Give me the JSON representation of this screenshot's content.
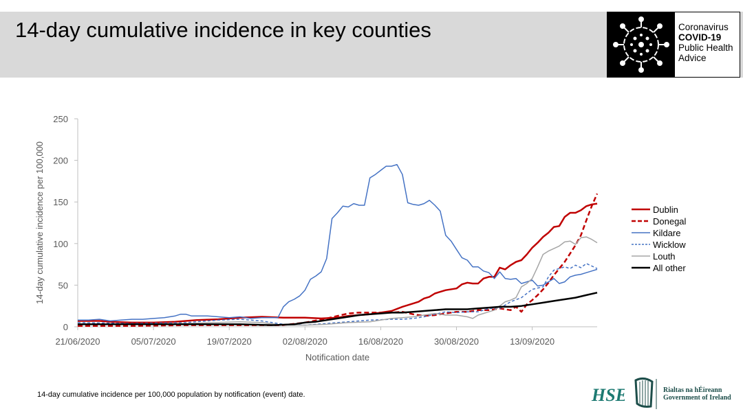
{
  "header": {
    "title": "14-day cumulative incidence in key counties",
    "badge_line1": "Coronavirus",
    "badge_line2": "COVID-19",
    "badge_line3": "Public Health",
    "badge_line4": "Advice"
  },
  "caption": "14-day cumulative incidence per 100,000 population by notification (event) date.",
  "logos": {
    "hse": "HSE",
    "gov_line1": "Rialtas na hÉireann",
    "gov_line2": "Government of Ireland"
  },
  "chart_data": {
    "type": "line",
    "xlabel": "Notification date",
    "ylabel": "14-day cumulative incidence per 100,000",
    "ylim": [
      0,
      250
    ],
    "yticks": [
      0,
      50,
      100,
      150,
      200,
      250
    ],
    "x_tick_labels": [
      "21/06/2020",
      "05/07/2020",
      "19/07/2020",
      "02/08/2020",
      "16/08/2020",
      "30/08/2020",
      "13/09/2020"
    ],
    "x_tick_days": [
      0,
      14,
      28,
      42,
      56,
      70,
      84
    ],
    "x_range_days": [
      0,
      96
    ],
    "x_start_date": "21/06/2020",
    "grid": false,
    "legend_position": "right",
    "series": [
      {
        "name": "Dublin",
        "color": "#c00000",
        "style": "solid",
        "width": 2.5,
        "points": [
          [
            0,
            7
          ],
          [
            4,
            7
          ],
          [
            6,
            6
          ],
          [
            10,
            5
          ],
          [
            14,
            5
          ],
          [
            18,
            6
          ],
          [
            22,
            8
          ],
          [
            26,
            9
          ],
          [
            30,
            11
          ],
          [
            34,
            12
          ],
          [
            38,
            11
          ],
          [
            42,
            11
          ],
          [
            45,
            10
          ],
          [
            48,
            11
          ],
          [
            50,
            13
          ],
          [
            52,
            14
          ],
          [
            54,
            15
          ],
          [
            56,
            17
          ],
          [
            58,
            19
          ],
          [
            60,
            24
          ],
          [
            62,
            28
          ],
          [
            63,
            30
          ],
          [
            64,
            34
          ],
          [
            65,
            36
          ],
          [
            66,
            40
          ],
          [
            67,
            42
          ],
          [
            68,
            44
          ],
          [
            70,
            46
          ],
          [
            71,
            51
          ],
          [
            72,
            53
          ],
          [
            73,
            52
          ],
          [
            74,
            52
          ],
          [
            75,
            58
          ],
          [
            76,
            60
          ],
          [
            77,
            60
          ],
          [
            78,
            71
          ],
          [
            79,
            69
          ],
          [
            80,
            74
          ],
          [
            81,
            78
          ],
          [
            82,
            80
          ],
          [
            83,
            87
          ],
          [
            84,
            95
          ],
          [
            85,
            101
          ],
          [
            86,
            108
          ],
          [
            87,
            113
          ],
          [
            88,
            120
          ],
          [
            89,
            121
          ],
          [
            90,
            132
          ],
          [
            91,
            137
          ],
          [
            92,
            137
          ],
          [
            93,
            140
          ],
          [
            94,
            145
          ],
          [
            95,
            147
          ],
          [
            96,
            148
          ]
        ]
      },
      {
        "name": "Donegal",
        "color": "#c00000",
        "style": "dashed",
        "width": 2.5,
        "points": [
          [
            0,
            1
          ],
          [
            10,
            1
          ],
          [
            20,
            2
          ],
          [
            30,
            2
          ],
          [
            38,
            2
          ],
          [
            42,
            5
          ],
          [
            46,
            10
          ],
          [
            48,
            13
          ],
          [
            50,
            16
          ],
          [
            52,
            17
          ],
          [
            54,
            17
          ],
          [
            56,
            17
          ],
          [
            58,
            17
          ],
          [
            60,
            18
          ],
          [
            62,
            15
          ],
          [
            64,
            13
          ],
          [
            66,
            14
          ],
          [
            68,
            16
          ],
          [
            70,
            18
          ],
          [
            72,
            18
          ],
          [
            74,
            20
          ],
          [
            76,
            20
          ],
          [
            78,
            22
          ],
          [
            80,
            20
          ],
          [
            81,
            24
          ],
          [
            82,
            18
          ],
          [
            83,
            27
          ],
          [
            84,
            32
          ],
          [
            85,
            38
          ],
          [
            86,
            45
          ],
          [
            87,
            53
          ],
          [
            88,
            62
          ],
          [
            89,
            70
          ],
          [
            90,
            78
          ],
          [
            91,
            88
          ],
          [
            92,
            98
          ],
          [
            93,
            110
          ],
          [
            94,
            128
          ],
          [
            95,
            145
          ],
          [
            96,
            160
          ]
        ]
      },
      {
        "name": "Kildare",
        "color": "#4472c4",
        "style": "solid",
        "width": 1.5,
        "points": [
          [
            0,
            8
          ],
          [
            2,
            8
          ],
          [
            4,
            9
          ],
          [
            6,
            7
          ],
          [
            8,
            8
          ],
          [
            10,
            9
          ],
          [
            12,
            9
          ],
          [
            14,
            10
          ],
          [
            16,
            11
          ],
          [
            18,
            13
          ],
          [
            19,
            15
          ],
          [
            20,
            15
          ],
          [
            21,
            13
          ],
          [
            22,
            13
          ],
          [
            24,
            13
          ],
          [
            26,
            12
          ],
          [
            28,
            11
          ],
          [
            30,
            12
          ],
          [
            32,
            10
          ],
          [
            34,
            11
          ],
          [
            36,
            11
          ],
          [
            37,
            11
          ],
          [
            38,
            24
          ],
          [
            39,
            30
          ],
          [
            40,
            33
          ],
          [
            41,
            37
          ],
          [
            42,
            44
          ],
          [
            43,
            57
          ],
          [
            44,
            61
          ],
          [
            45,
            66
          ],
          [
            46,
            82
          ],
          [
            47,
            130
          ],
          [
            48,
            137
          ],
          [
            49,
            145
          ],
          [
            50,
            144
          ],
          [
            51,
            148
          ],
          [
            52,
            146
          ],
          [
            53,
            146
          ],
          [
            54,
            179
          ],
          [
            55,
            183
          ],
          [
            56,
            188
          ],
          [
            57,
            193
          ],
          [
            58,
            193
          ],
          [
            59,
            195
          ],
          [
            60,
            183
          ],
          [
            61,
            149
          ],
          [
            62,
            147
          ],
          [
            63,
            146
          ],
          [
            64,
            148
          ],
          [
            65,
            152
          ],
          [
            66,
            146
          ],
          [
            67,
            139
          ],
          [
            68,
            110
          ],
          [
            69,
            103
          ],
          [
            70,
            93
          ],
          [
            71,
            83
          ],
          [
            72,
            80
          ],
          [
            73,
            72
          ],
          [
            74,
            72
          ],
          [
            75,
            67
          ],
          [
            76,
            65
          ],
          [
            77,
            58
          ],
          [
            78,
            66
          ],
          [
            79,
            58
          ],
          [
            80,
            57
          ],
          [
            81,
            58
          ],
          [
            82,
            52
          ],
          [
            83,
            54
          ],
          [
            84,
            56
          ],
          [
            85,
            49
          ],
          [
            86,
            50
          ],
          [
            87,
            54
          ],
          [
            88,
            58
          ],
          [
            89,
            52
          ],
          [
            90,
            54
          ],
          [
            91,
            60
          ],
          [
            92,
            62
          ],
          [
            93,
            63
          ],
          [
            94,
            65
          ],
          [
            95,
            67
          ],
          [
            96,
            69
          ]
        ]
      },
      {
        "name": "Wicklow",
        "color": "#4472c4",
        "style": "dashed",
        "width": 1.5,
        "points": [
          [
            0,
            5
          ],
          [
            10,
            4
          ],
          [
            20,
            5
          ],
          [
            26,
            8
          ],
          [
            30,
            9
          ],
          [
            34,
            7
          ],
          [
            38,
            3
          ],
          [
            42,
            2
          ],
          [
            46,
            4
          ],
          [
            50,
            6
          ],
          [
            54,
            8
          ],
          [
            58,
            9
          ],
          [
            60,
            9
          ],
          [
            62,
            10
          ],
          [
            64,
            12
          ],
          [
            66,
            15
          ],
          [
            68,
            18
          ],
          [
            70,
            17
          ],
          [
            72,
            18
          ],
          [
            74,
            18
          ],
          [
            76,
            22
          ],
          [
            78,
            22
          ],
          [
            80,
            30
          ],
          [
            82,
            35
          ],
          [
            84,
            45
          ],
          [
            86,
            48
          ],
          [
            87,
            60
          ],
          [
            88,
            68
          ],
          [
            89,
            70
          ],
          [
            90,
            72
          ],
          [
            91,
            70
          ],
          [
            92,
            74
          ],
          [
            93,
            71
          ],
          [
            94,
            76
          ],
          [
            95,
            73
          ],
          [
            96,
            70
          ]
        ]
      },
      {
        "name": "Louth",
        "color": "#a5a5a5",
        "style": "solid",
        "width": 1.5,
        "points": [
          [
            0,
            3
          ],
          [
            10,
            3
          ],
          [
            20,
            4
          ],
          [
            30,
            6
          ],
          [
            34,
            5
          ],
          [
            38,
            2
          ],
          [
            42,
            2
          ],
          [
            46,
            3
          ],
          [
            50,
            5
          ],
          [
            54,
            6
          ],
          [
            56,
            8
          ],
          [
            58,
            10
          ],
          [
            60,
            11
          ],
          [
            62,
            12
          ],
          [
            64,
            14
          ],
          [
            66,
            16
          ],
          [
            68,
            14
          ],
          [
            70,
            14
          ],
          [
            72,
            12
          ],
          [
            73,
            10
          ],
          [
            74,
            14
          ],
          [
            75,
            16
          ],
          [
            76,
            18
          ],
          [
            77,
            20
          ],
          [
            78,
            25
          ],
          [
            79,
            30
          ],
          [
            80,
            32
          ],
          [
            81,
            35
          ],
          [
            82,
            48
          ],
          [
            83,
            52
          ],
          [
            84,
            58
          ],
          [
            85,
            72
          ],
          [
            86,
            87
          ],
          [
            87,
            91
          ],
          [
            88,
            94
          ],
          [
            89,
            97
          ],
          [
            90,
            102
          ],
          [
            91,
            103
          ],
          [
            92,
            99
          ],
          [
            93,
            107
          ],
          [
            94,
            108
          ],
          [
            95,
            105
          ],
          [
            96,
            101
          ]
        ]
      },
      {
        "name": "All other",
        "color": "#000000",
        "style": "solid",
        "width": 2.5,
        "points": [
          [
            0,
            3
          ],
          [
            10,
            3
          ],
          [
            20,
            3
          ],
          [
            30,
            3
          ],
          [
            36,
            2
          ],
          [
            40,
            3
          ],
          [
            42,
            5
          ],
          [
            44,
            6
          ],
          [
            46,
            8
          ],
          [
            48,
            10
          ],
          [
            50,
            12
          ],
          [
            52,
            14
          ],
          [
            54,
            15
          ],
          [
            56,
            16
          ],
          [
            58,
            17
          ],
          [
            60,
            17
          ],
          [
            62,
            18
          ],
          [
            64,
            19
          ],
          [
            66,
            20
          ],
          [
            68,
            21
          ],
          [
            70,
            21
          ],
          [
            72,
            21
          ],
          [
            74,
            22
          ],
          [
            76,
            23
          ],
          [
            78,
            24
          ],
          [
            80,
            24
          ],
          [
            82,
            25
          ],
          [
            84,
            27
          ],
          [
            86,
            29
          ],
          [
            88,
            31
          ],
          [
            90,
            33
          ],
          [
            92,
            35
          ],
          [
            94,
            38
          ],
          [
            96,
            41
          ]
        ]
      }
    ]
  }
}
